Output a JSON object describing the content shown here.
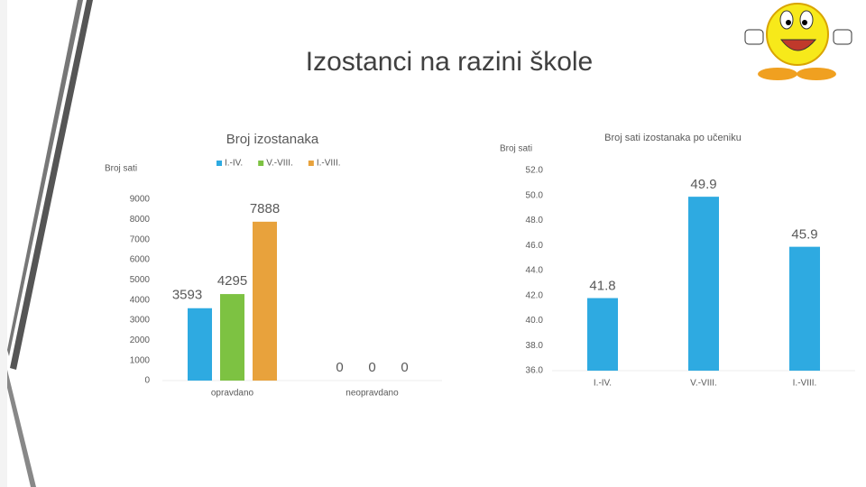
{
  "slide_title": "Izostanci na razini škole",
  "chart_data": [
    {
      "type": "grouped-bar",
      "title": "Broj izostanaka",
      "y_label": "Broj sati",
      "categories": [
        "opravdano",
        "neopravdano"
      ],
      "series": [
        {
          "name": "I.-IV.",
          "color": "#2eaae1",
          "values": [
            3593,
            0
          ]
        },
        {
          "name": "V.-VIII.",
          "color": "#7dc242",
          "values": [
            4295,
            0
          ]
        },
        {
          "name": "I.-VIII.",
          "color": "#e8a23c",
          "values": [
            7888,
            0
          ]
        }
      ],
      "ylim": [
        0,
        9000
      ],
      "yticks": [
        0,
        1000,
        2000,
        3000,
        4000,
        5000,
        6000,
        7000,
        8000,
        9000
      ],
      "grid": false,
      "legend": "top"
    },
    {
      "type": "bar",
      "title": "Broj sati izostanaka po učeniku",
      "y_label": "Broj sati",
      "categories": [
        "I.-IV.",
        "V.-VIII.",
        "I.-VIII."
      ],
      "values": [
        41.8,
        49.9,
        45.9
      ],
      "color": "#2eaae1",
      "ylim": [
        36,
        52
      ],
      "yticks": [
        {
          "value": 36,
          "label": "36.0"
        },
        {
          "value": 38,
          "label": "38.0"
        },
        {
          "value": 40,
          "label": "40.0"
        },
        {
          "value": 42,
          "label": "42.0"
        },
        {
          "value": 44,
          "label": "44.0"
        },
        {
          "value": 46,
          "label": "46.0"
        },
        {
          "value": 48,
          "label": "48.0"
        },
        {
          "value": 50,
          "label": "50.0"
        },
        {
          "value": 52,
          "label": "52.0"
        }
      ],
      "grid": false
    }
  ]
}
